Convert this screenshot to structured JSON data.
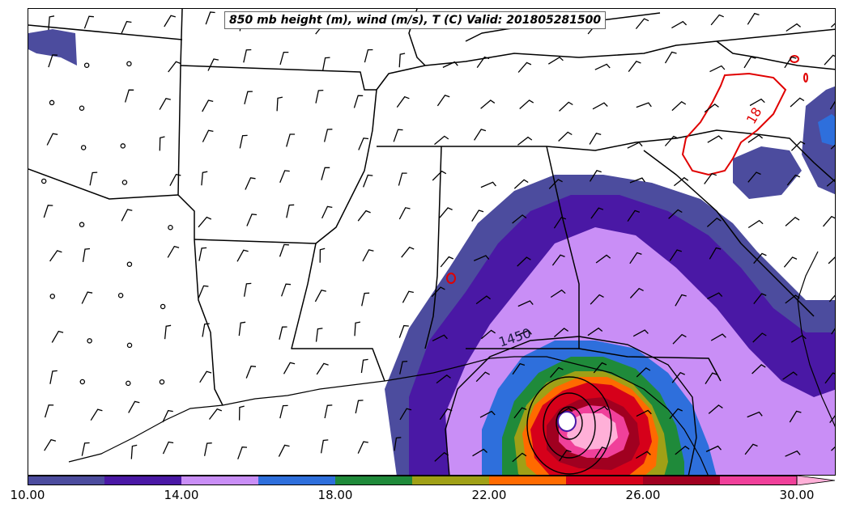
{
  "title": "850 mb height (m), wind (m/s), T (C) Valid: 201805281500",
  "contour_labels": {
    "height": "1450",
    "temperature": "18"
  },
  "colorbar": {
    "colors": [
      "#4c4c9e",
      "#4a18a5",
      "#c98ef6",
      "#2e6fdc",
      "#1f8a3a",
      "#a0a016",
      "#ff6a00",
      "#d6001a",
      "#a00020",
      "#f0409a",
      "#ffb0d8"
    ],
    "tick_labels": [
      "10.00",
      "14.00",
      "18.00",
      "22.00",
      "26.00",
      "30.00"
    ]
  }
}
